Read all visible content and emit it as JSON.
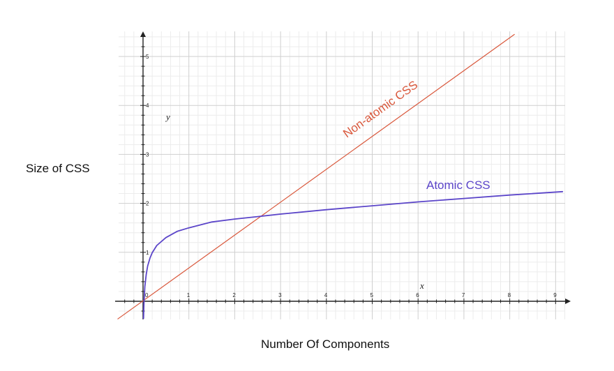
{
  "chart_data": {
    "type": "line",
    "xlabel": "Number Of Components",
    "ylabel": "Size of CSS",
    "axis_var_x": "x",
    "axis_var_y": "y",
    "xlim": [
      -0.55,
      9.15
    ],
    "ylim": [
      -0.38,
      5.6
    ],
    "x_ticks": [
      1,
      2,
      3,
      4,
      5,
      6,
      7,
      8,
      9
    ],
    "y_ticks": [
      1,
      2,
      3,
      4,
      5
    ],
    "origin_label": "0",
    "grid": true,
    "series": [
      {
        "name": "Non-atomic CSS",
        "color": "#d9573b",
        "x": [
          -0.55,
          8.1
        ],
        "y": [
          -0.36,
          5.45
        ]
      },
      {
        "name": "Atomic CSS",
        "color": "#5b45c9",
        "x": [
          0.01,
          0.02,
          0.04,
          0.07,
          0.1,
          0.15,
          0.2,
          0.3,
          0.5,
          0.75,
          1,
          1.5,
          2,
          2.5,
          3,
          4,
          5,
          6,
          7,
          8,
          9.15
        ],
        "y": [
          -0.35,
          -0.05,
          0.3,
          0.55,
          0.72,
          0.88,
          0.99,
          1.14,
          1.3,
          1.43,
          1.5,
          1.62,
          1.68,
          1.73,
          1.78,
          1.87,
          1.95,
          2.03,
          2.1,
          2.17,
          2.24
        ]
      }
    ]
  }
}
